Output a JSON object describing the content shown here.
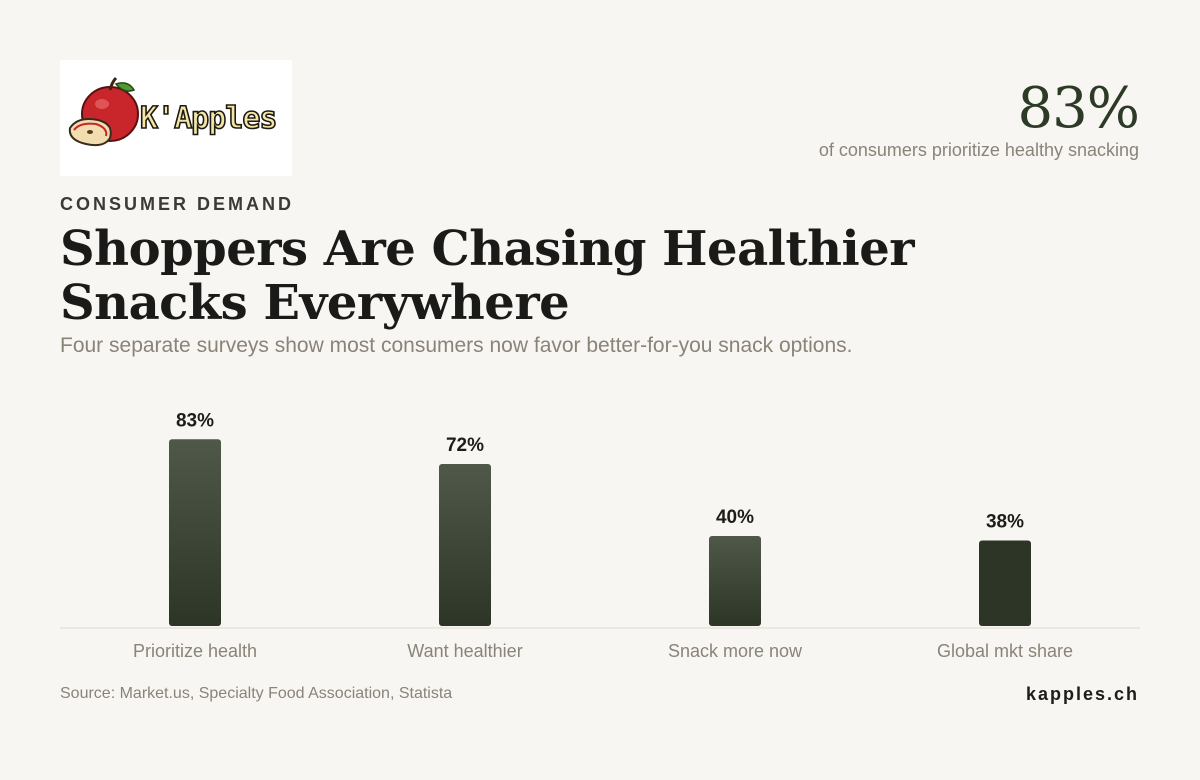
{
  "brand": {
    "logo_text": "K'Apples",
    "site": "kapples.ch"
  },
  "headline_stat": {
    "value": "83%",
    "label": "of consumers prioritize healthy snacking"
  },
  "eyebrow": "CONSUMER DEMAND",
  "title": "Shoppers Are Chasing Healthier Snacks Everywhere",
  "subtitle": "Four separate surveys show most consumers now favor better-for-you snack options.",
  "source": "Source: Market.us, Specialty Food Association, Statista",
  "colors": {
    "background": "#f8f6f2",
    "bar_top": "#4f5849",
    "bar_bottom": "#2d3526",
    "accent": "#2c3a26",
    "muted_text": "#8a8378"
  },
  "chart_data": {
    "type": "bar",
    "categories": [
      "Prioritize health",
      "Want healthier",
      "Snack more now",
      "Global mkt share"
    ],
    "values": [
      83,
      72,
      40,
      38
    ],
    "value_labels": [
      "83%",
      "72%",
      "40%",
      "38%"
    ],
    "ylim": [
      0,
      100
    ],
    "grid": false,
    "legend": "none"
  }
}
